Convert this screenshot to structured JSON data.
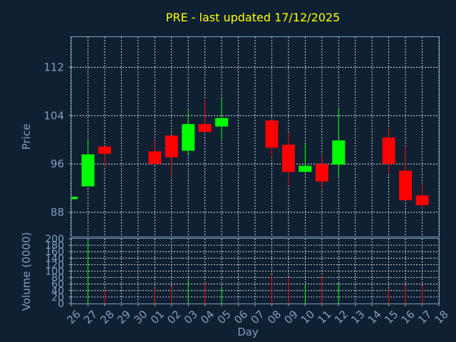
{
  "chart_data": {
    "type": "candlestick",
    "title": "PRE - last updated 17/12/2025",
    "xlabel": "Day",
    "ylabel": "Price",
    "volume_label": "Volume (0000)",
    "x_ticks": [
      "26",
      "27",
      "28",
      "29",
      "30",
      "01",
      "02",
      "03",
      "04",
      "05",
      "06",
      "07",
      "08",
      "09",
      "10",
      "11",
      "12",
      "13",
      "14",
      "15",
      "16",
      "17",
      "18"
    ],
    "y_ticks": [
      88,
      96,
      104,
      112
    ],
    "ylim": [
      84,
      117
    ],
    "volume_ticks": [
      0,
      20,
      40,
      60,
      80,
      100,
      120,
      140,
      160,
      180,
      200
    ],
    "volume_ylim": [
      0,
      200
    ],
    "grid": true,
    "up_color": "#00ff00",
    "down_color": "#ff0000",
    "candles": [
      {
        "day": "26",
        "open": 90.2,
        "close": 90.6,
        "high": 90.6,
        "low": 90.2,
        "volume": 0
      },
      {
        "day": "27",
        "open": 92.3,
        "close": 97.6,
        "high": 99.9,
        "low": 92.3,
        "volume": 195
      },
      {
        "day": "28",
        "open": 98.9,
        "close": 97.7,
        "high": 98.9,
        "low": 95.6,
        "volume": 40
      },
      {
        "day": "01",
        "open": 98.1,
        "close": 96.0,
        "high": 99.9,
        "low": 96.0,
        "volume": 45
      },
      {
        "day": "02",
        "open": 100.7,
        "close": 97.1,
        "high": 100.7,
        "low": 93.8,
        "volume": 55
      },
      {
        "day": "03",
        "open": 98.2,
        "close": 102.6,
        "high": 104.9,
        "low": 97.3,
        "volume": 75
      },
      {
        "day": "04",
        "open": 102.6,
        "close": 101.3,
        "high": 106.7,
        "low": 101.3,
        "volume": 65
      },
      {
        "day": "05",
        "open": 102.2,
        "close": 103.6,
        "high": 106.9,
        "low": 100.1,
        "volume": 45
      },
      {
        "day": "08",
        "open": 103.2,
        "close": 98.7,
        "high": 103.2,
        "low": 97.1,
        "volume": 90
      },
      {
        "day": "09",
        "open": 99.2,
        "close": 94.7,
        "high": 101.2,
        "low": 92.4,
        "volume": 80
      },
      {
        "day": "10",
        "open": 94.7,
        "close": 95.7,
        "high": 99.3,
        "low": 94.5,
        "volume": 60
      },
      {
        "day": "11",
        "open": 96.0,
        "close": 93.1,
        "high": 97.5,
        "low": 91.9,
        "volume": 85
      },
      {
        "day": "12",
        "open": 95.9,
        "close": 99.9,
        "high": 105.3,
        "low": 93.8,
        "volume": 65
      },
      {
        "day": "15",
        "open": 100.4,
        "close": 96.0,
        "high": 101.9,
        "low": 94.4,
        "volume": 40
      },
      {
        "day": "16",
        "open": 94.9,
        "close": 90.0,
        "high": 98.9,
        "low": 90.0,
        "volume": 55
      },
      {
        "day": "17",
        "open": 90.8,
        "close": 89.2,
        "high": 92.8,
        "low": 88.5,
        "volume": 55
      }
    ]
  }
}
